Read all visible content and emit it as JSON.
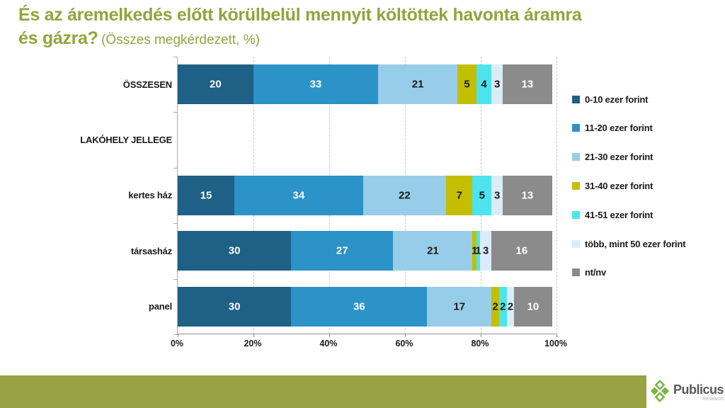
{
  "colors": {
    "accent_green": "#90A53E",
    "footer_green": "#99A343",
    "logo_green": "#7CB542",
    "brand_text": "#57585A",
    "brand_sub_text": "#A9ABAE"
  },
  "title": {
    "line1": "És az áremelkedés előtt körülbelül mennyit költöttek havonta áramra",
    "line2_bold": "és gázra?",
    "line2_sub": "(Összes megkérdezett, %)"
  },
  "chart_data": {
    "type": "bar",
    "stacked": true,
    "orientation": "horizontal",
    "grid": "dashed-vertical",
    "legend_position": "right",
    "xlim": [
      0,
      100
    ],
    "x_ticks": [
      "0%",
      "20%",
      "40%",
      "60%",
      "80%",
      "100%"
    ],
    "categories": [
      "ÖSSZESEN",
      "LAKÓHELY JELLEGE",
      "kertes ház",
      "társasház",
      "panel"
    ],
    "series": [
      {
        "name": "0-10 ezer forint",
        "color": "#1E6086",
        "label_color": "#FFFFFF",
        "values": [
          20,
          null,
          15,
          30,
          30
        ]
      },
      {
        "name": "11-20 ezer forint",
        "color": "#2B93C7",
        "label_color": "#FFFFFF",
        "values": [
          33,
          null,
          34,
          27,
          36
        ]
      },
      {
        "name": "21-30 ezer forint",
        "color": "#98CDE9",
        "label_color": "#1A1A1A",
        "values": [
          21,
          null,
          22,
          21,
          17
        ]
      },
      {
        "name": "31-40 ezer forint",
        "color": "#C3BF00",
        "label_color": "#1A1A1A",
        "values": [
          5,
          null,
          7,
          1,
          2
        ]
      },
      {
        "name": "41-51 ezer forint",
        "color": "#4DE4ED",
        "label_color": "#1A1A1A",
        "values": [
          4,
          null,
          5,
          1,
          2
        ]
      },
      {
        "name": "több, mint 50 ezer forint",
        "color": "#DAECF8",
        "label_color": "#1A1A1A",
        "values": [
          3,
          null,
          3,
          3,
          2
        ]
      },
      {
        "name": "nt/nv",
        "color": "#8B8B8B",
        "label_color": "#FFFFFF",
        "values": [
          13,
          null,
          13,
          16,
          10
        ]
      }
    ]
  },
  "footer": {
    "brand": "Publicus",
    "brand_sub": "Research"
  }
}
